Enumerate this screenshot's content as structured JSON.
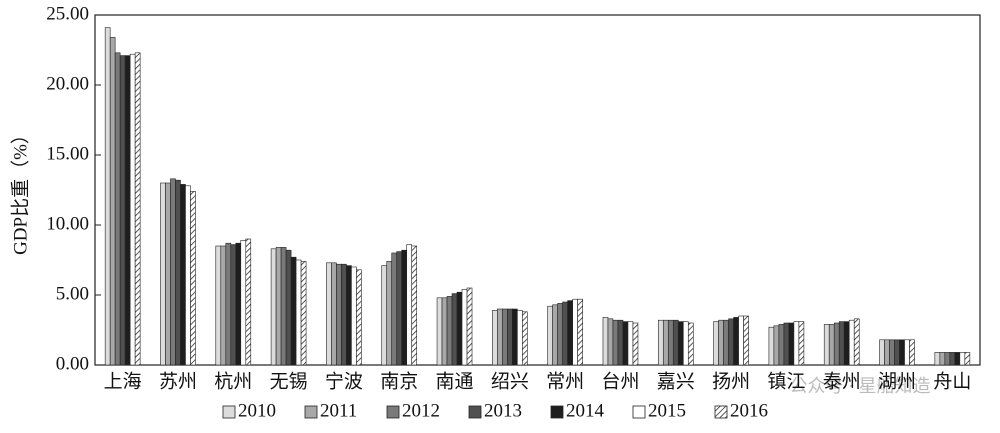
{
  "chart_data": {
    "type": "bar",
    "y_label": "GDP比重（%）",
    "watermark": "公众号 · 星船知造",
    "categories": [
      "上海",
      "苏州",
      "杭州",
      "无锡",
      "宁波",
      "南京",
      "南通",
      "绍兴",
      "常州",
      "台州",
      "嘉兴",
      "扬州",
      "镇江",
      "泰州",
      "湖州",
      "舟山"
    ],
    "series": [
      {
        "name": "2010",
        "color": "#dcdcdc",
        "values": [
          24.1,
          13.0,
          8.5,
          8.3,
          7.3,
          7.1,
          4.8,
          3.9,
          4.2,
          3.4,
          3.2,
          3.1,
          2.7,
          2.9,
          1.8,
          0.9
        ]
      },
      {
        "name": "2011",
        "color": "#a8a8a8",
        "values": [
          23.4,
          13.0,
          8.5,
          8.4,
          7.3,
          7.4,
          4.8,
          4.0,
          4.3,
          3.3,
          3.2,
          3.2,
          2.8,
          2.9,
          1.8,
          0.9
        ]
      },
      {
        "name": "2012",
        "color": "#7a7a7a",
        "values": [
          22.3,
          13.3,
          8.7,
          8.4,
          7.2,
          8.0,
          4.9,
          4.0,
          4.4,
          3.2,
          3.2,
          3.2,
          2.9,
          3.0,
          1.8,
          0.9
        ]
      },
      {
        "name": "2013",
        "color": "#505050",
        "values": [
          22.1,
          13.2,
          8.6,
          8.2,
          7.2,
          8.1,
          5.1,
          4.0,
          4.5,
          3.2,
          3.2,
          3.3,
          3.0,
          3.1,
          1.8,
          0.9
        ]
      },
      {
        "name": "2014",
        "color": "#1e1e1e",
        "values": [
          22.1,
          12.9,
          8.7,
          7.7,
          7.1,
          8.2,
          5.2,
          4.0,
          4.6,
          3.1,
          3.1,
          3.4,
          3.0,
          3.1,
          1.8,
          0.9
        ]
      },
      {
        "name": "2015",
        "color": "#ffffff",
        "values": [
          22.2,
          12.8,
          8.9,
          7.5,
          7.0,
          8.6,
          5.4,
          3.9,
          4.7,
          3.1,
          3.1,
          3.5,
          3.1,
          3.2,
          1.8,
          0.9
        ]
      },
      {
        "name": "2016",
        "color": "#ffffff",
        "hatch": true,
        "values": [
          22.3,
          12.4,
          9.0,
          7.4,
          6.8,
          8.5,
          5.5,
          3.8,
          4.7,
          3.0,
          3.0,
          3.5,
          3.1,
          3.3,
          1.8,
          0.9
        ]
      }
    ],
    "ylim": [
      0,
      25
    ],
    "yticks": [
      {
        "value": 0,
        "label": "0.00"
      },
      {
        "value": 5,
        "label": "5.00"
      },
      {
        "value": 10,
        "label": "10.00"
      },
      {
        "value": 15,
        "label": "15.00"
      },
      {
        "value": 20,
        "label": "20.00"
      },
      {
        "value": 25,
        "label": "25.00"
      }
    ]
  }
}
